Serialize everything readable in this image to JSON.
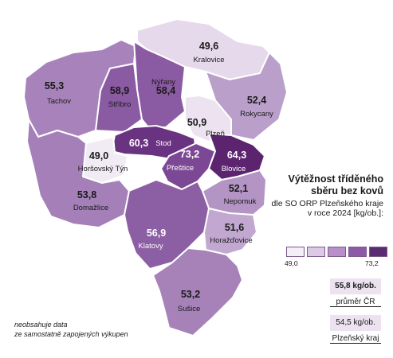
{
  "legend": {
    "title_line1": "Výtěžnost tříděného",
    "title_line2": "sběru bez kovů",
    "sub_line1": "dle SO ORP Plzeňského kraje",
    "sub_line2": "v roce 2024 [kg/ob.]:",
    "scale_min": "49,0",
    "scale_max": "73,2",
    "scale_colors": [
      "#f4eef7",
      "#ddc8e6",
      "#b98fc9",
      "#8d5aa5",
      "#5b2a72"
    ]
  },
  "reference": {
    "cr_value": "55,8 kg/ob.",
    "cr_label": "průměr ČR",
    "kraj_value": "54,5 kg/ob.",
    "kraj_label": "Plzeňský kraj"
  },
  "note": {
    "line1": "neobsahuje data",
    "line2": "ze samostatně zapojených výkupen"
  },
  "regions": [
    {
      "name": "Kralovice",
      "value": "49,6",
      "color": "#e6d9ec"
    },
    {
      "name": "Tachov",
      "value": "55,3",
      "color": "#a883bb"
    },
    {
      "name": "Stříbro",
      "value": "58,9",
      "color": "#8a5aa2"
    },
    {
      "name": "Nýřany",
      "value": "58,4",
      "color": "#8a5aa2"
    },
    {
      "name": "Plzeň",
      "value": "50,9",
      "color": "#ece2f0"
    },
    {
      "name": "Rokycany",
      "value": "52,4",
      "color": "#b99fc9"
    },
    {
      "name": "Stod",
      "value": "60,3",
      "color": "#6a3381"
    },
    {
      "name": "Horšovský Týn",
      "value": "49,0",
      "color": "#f1ebf4"
    },
    {
      "name": "Přeštice",
      "value": "73,2",
      "color": "#7c4895"
    },
    {
      "name": "Blovice",
      "value": "64,3",
      "color": "#5c246f"
    },
    {
      "name": "Domažlice",
      "value": "53,8",
      "color": "#a580b8"
    },
    {
      "name": "Nepomuk",
      "value": "52,1",
      "color": "#b394c4"
    },
    {
      "name": "Klatovy",
      "value": "56,9",
      "color": "#8c5ea3"
    },
    {
      "name": "Horažďovice",
      "value": "51,6",
      "color": "#c2a7d0"
    },
    {
      "name": "Sušice",
      "value": "53,2",
      "color": "#a682b8"
    }
  ]
}
